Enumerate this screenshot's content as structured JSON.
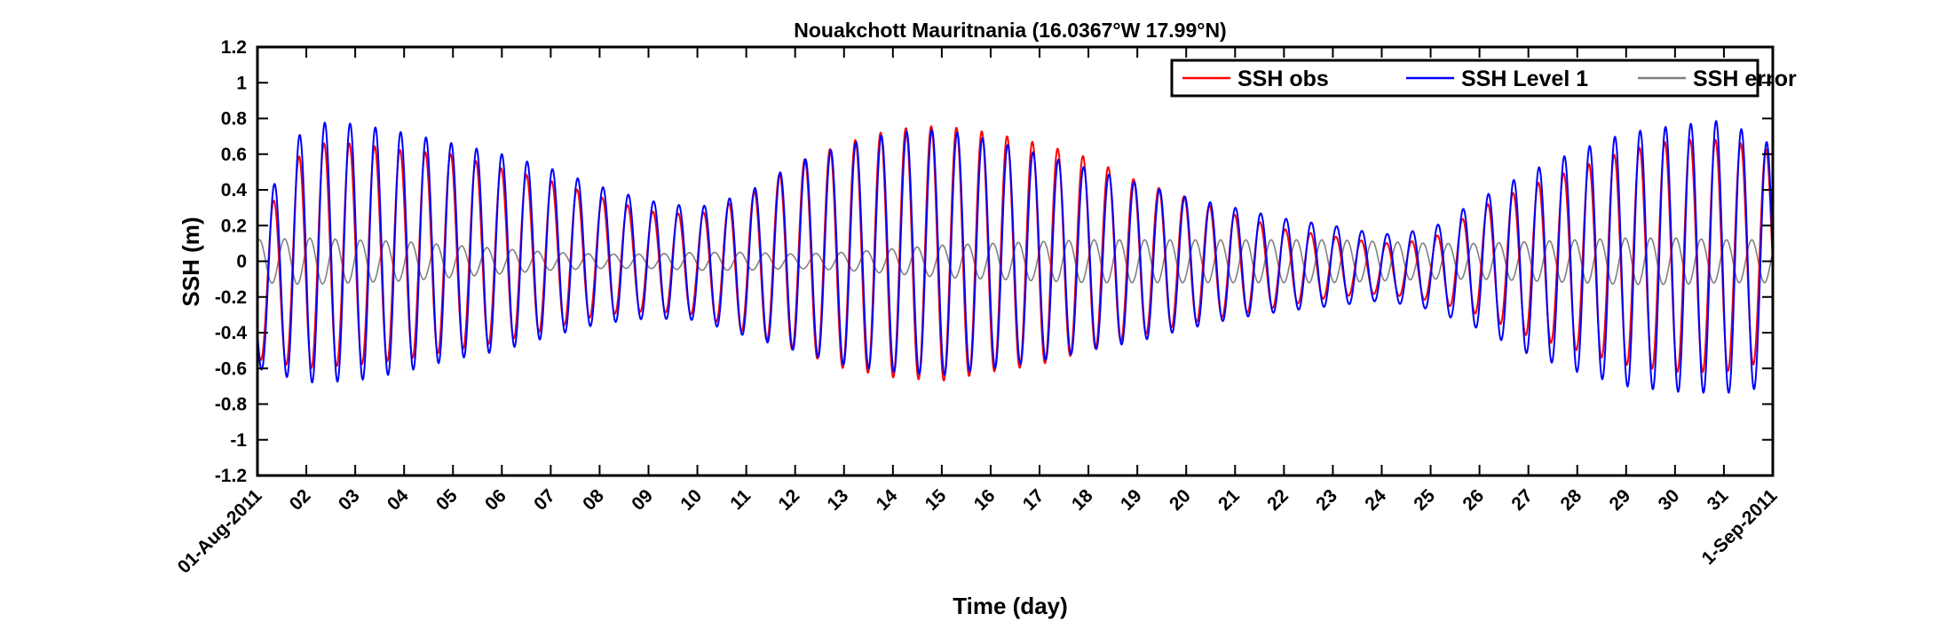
{
  "chart_data": {
    "type": "line",
    "title": "Nouakchott Mauritnania (16.0367°W 17.99°N)",
    "xlabel": "Time (day)",
    "ylabel": "SSH (m)",
    "xlim": [
      "2011-08-01",
      "2011-09-01"
    ],
    "ylim": [
      -1.2,
      1.2
    ],
    "y_ticks": [
      -1.2,
      -1,
      -0.8,
      -0.6,
      -0.4,
      -0.2,
      0,
      0.2,
      0.4,
      0.6,
      0.8,
      1,
      1.2
    ],
    "y_tick_labels": [
      "-1.2",
      "-1",
      "-0.8",
      "-0.6",
      "-0.4",
      "-0.2",
      "0",
      "0.2",
      "0.4",
      "0.6",
      "0.8",
      "1",
      "1.2"
    ],
    "x_tick_labels": [
      "01-Aug-2011",
      "02",
      "03",
      "04",
      "05",
      "06",
      "07",
      "08",
      "09",
      "10",
      "11",
      "12",
      "13",
      "14",
      "15",
      "16",
      "17",
      "18",
      "19",
      "20",
      "21",
      "22",
      "23",
      "24",
      "25",
      "26",
      "27",
      "28",
      "29",
      "30",
      "31",
      "1-Sep-2011"
    ],
    "legend_position": "top-right",
    "grid": false,
    "tidal_period_hours": 12.42,
    "daily_envelope_days": [
      0,
      1,
      2,
      3,
      4,
      5,
      6,
      7,
      8,
      9,
      10,
      11,
      12,
      13,
      14,
      15,
      16,
      17,
      18,
      19,
      20,
      21,
      22,
      23,
      24,
      25,
      26,
      27,
      28,
      29,
      30,
      31
    ],
    "series": [
      {
        "name": "SSH obs",
        "color": "#ff0000",
        "max": [
          0.18,
          0.66,
          0.66,
          0.62,
          0.6,
          0.52,
          0.45,
          0.36,
          0.28,
          0.26,
          0.36,
          0.55,
          0.66,
          0.74,
          0.76,
          0.72,
          0.66,
          0.58,
          0.45,
          0.36,
          0.26,
          0.18,
          0.14,
          0.1,
          0.12,
          0.3,
          0.42,
          0.52,
          0.62,
          0.68,
          0.68,
          0.62
        ],
        "min": [
          -0.55,
          -0.6,
          -0.58,
          -0.55,
          -0.5,
          -0.45,
          -0.38,
          -0.3,
          -0.28,
          -0.3,
          -0.4,
          -0.5,
          -0.6,
          -0.65,
          -0.67,
          -0.62,
          -0.58,
          -0.5,
          -0.42,
          -0.35,
          -0.3,
          -0.25,
          -0.2,
          -0.18,
          -0.22,
          -0.3,
          -0.42,
          -0.5,
          -0.58,
          -0.62,
          -0.62,
          -0.55
        ]
      },
      {
        "name": "SSH Level 1",
        "color": "#0000ff",
        "max": [
          0.25,
          0.78,
          0.77,
          0.72,
          0.66,
          0.6,
          0.52,
          0.42,
          0.34,
          0.3,
          0.38,
          0.55,
          0.65,
          0.72,
          0.74,
          0.68,
          0.6,
          0.52,
          0.44,
          0.36,
          0.3,
          0.24,
          0.2,
          0.15,
          0.18,
          0.35,
          0.5,
          0.62,
          0.72,
          0.76,
          0.79,
          0.65
        ],
        "min": [
          -0.6,
          -0.68,
          -0.67,
          -0.62,
          -0.55,
          -0.5,
          -0.42,
          -0.35,
          -0.32,
          -0.33,
          -0.42,
          -0.5,
          -0.58,
          -0.62,
          -0.64,
          -0.6,
          -0.56,
          -0.5,
          -0.45,
          -0.38,
          -0.32,
          -0.28,
          -0.25,
          -0.22,
          -0.27,
          -0.38,
          -0.52,
          -0.62,
          -0.7,
          -0.73,
          -0.74,
          -0.7
        ]
      },
      {
        "name": "SSH error",
        "color": "#808080",
        "amp": [
          0.12,
          0.13,
          0.12,
          0.11,
          0.09,
          0.07,
          0.05,
          0.04,
          0.04,
          0.05,
          0.05,
          0.04,
          0.05,
          0.07,
          0.09,
          0.1,
          0.11,
          0.12,
          0.12,
          0.12,
          0.12,
          0.12,
          0.12,
          0.11,
          0.1,
          0.1,
          0.11,
          0.12,
          0.13,
          0.13,
          0.12,
          0.12
        ]
      }
    ]
  }
}
